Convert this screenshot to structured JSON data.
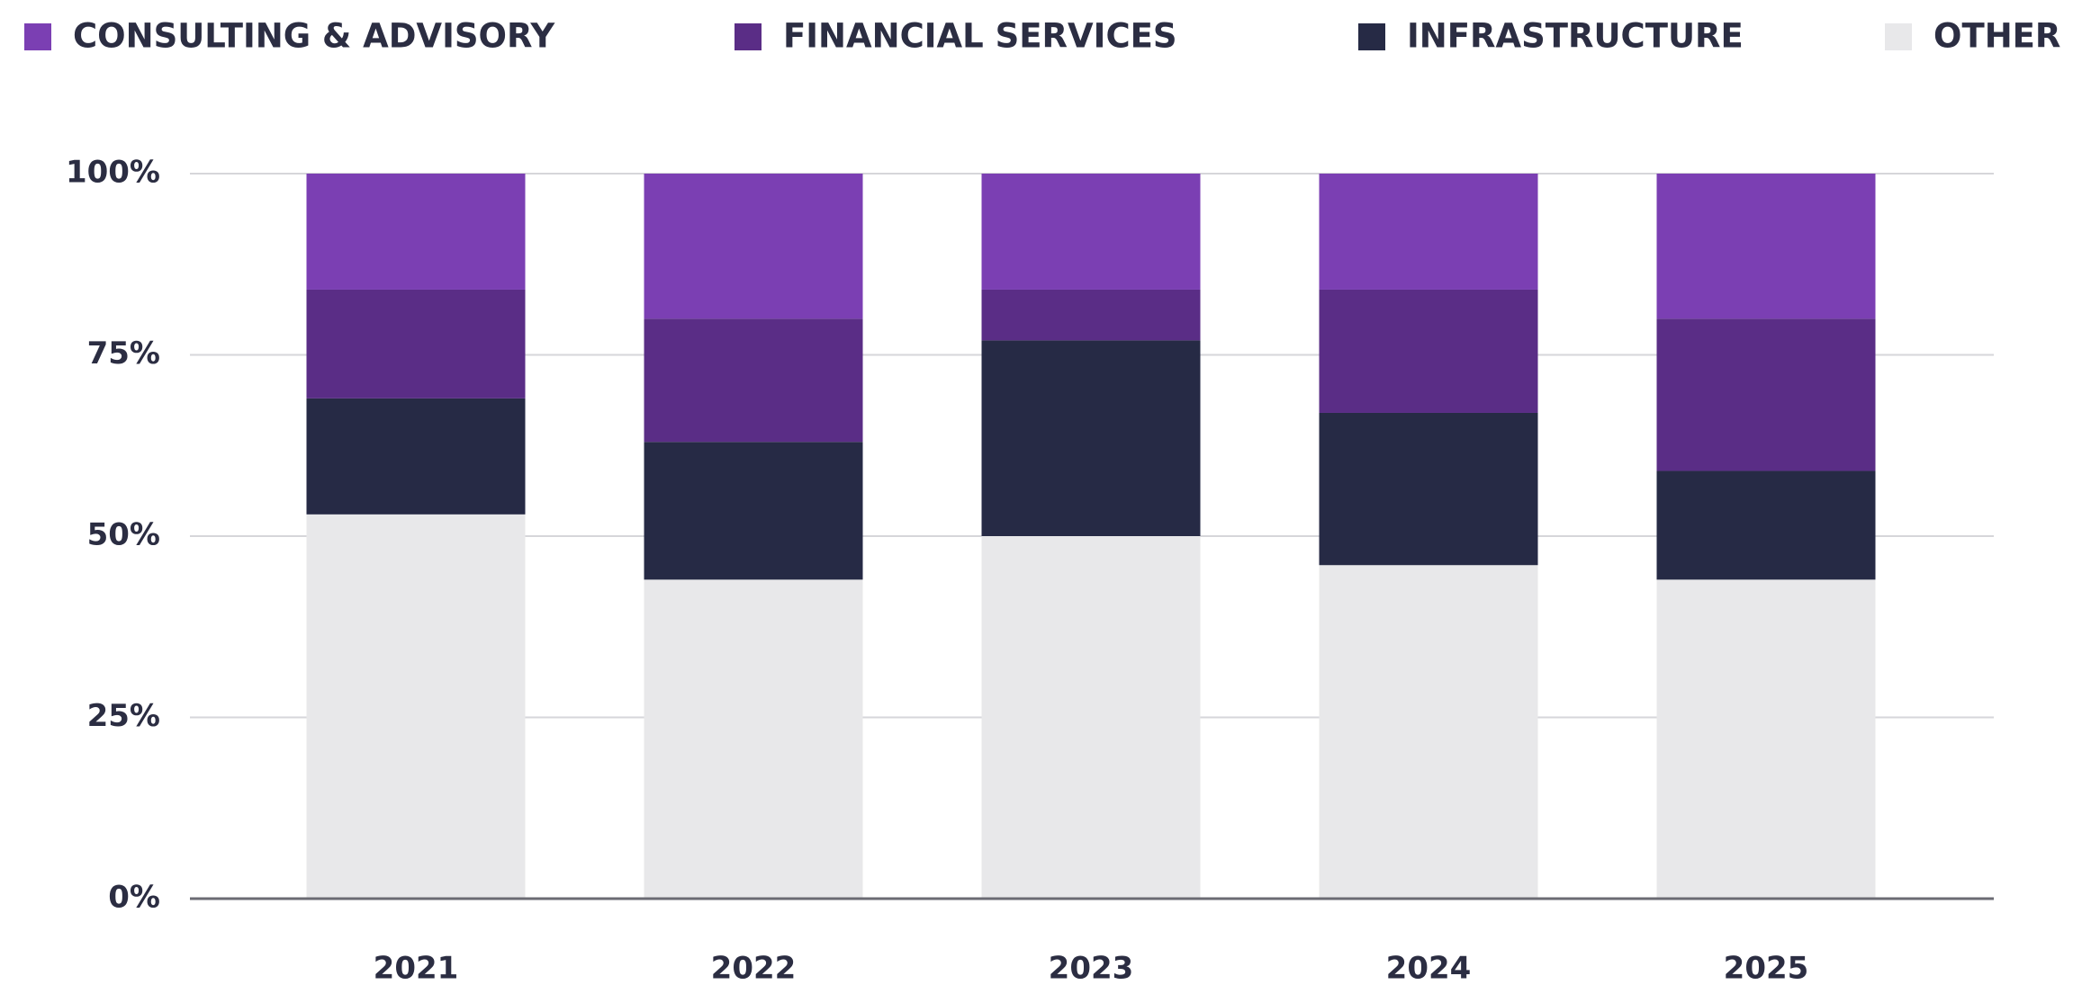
{
  "chart_data": {
    "type": "stacked_bar_100",
    "categories": [
      "2021",
      "2022",
      "2023",
      "2024",
      "2025"
    ],
    "series": [
      {
        "name": "CONSULTING & ADVISORY",
        "color": "#7b3fb3",
        "values": [
          16,
          20,
          16,
          16,
          20
        ]
      },
      {
        "name": "FINANCIAL SERVICES",
        "color": "#5a2d86",
        "values": [
          15,
          17,
          7,
          17,
          21
        ]
      },
      {
        "name": "INFRASTRUCTURE",
        "color": "#262a45",
        "values": [
          16,
          19,
          27,
          21,
          15
        ]
      },
      {
        "name": "OTHER",
        "color": "#e8e8ea",
        "values": [
          53,
          44,
          50,
          46,
          44
        ]
      }
    ],
    "ylim": [
      0,
      100
    ],
    "yticks": [
      {
        "value": 0,
        "label": "0%"
      },
      {
        "value": 25,
        "label": "25%"
      },
      {
        "value": 50,
        "label": "50%"
      },
      {
        "value": 75,
        "label": "75%"
      },
      {
        "value": 100,
        "label": "100%"
      }
    ],
    "grid": true,
    "legend": "top"
  }
}
